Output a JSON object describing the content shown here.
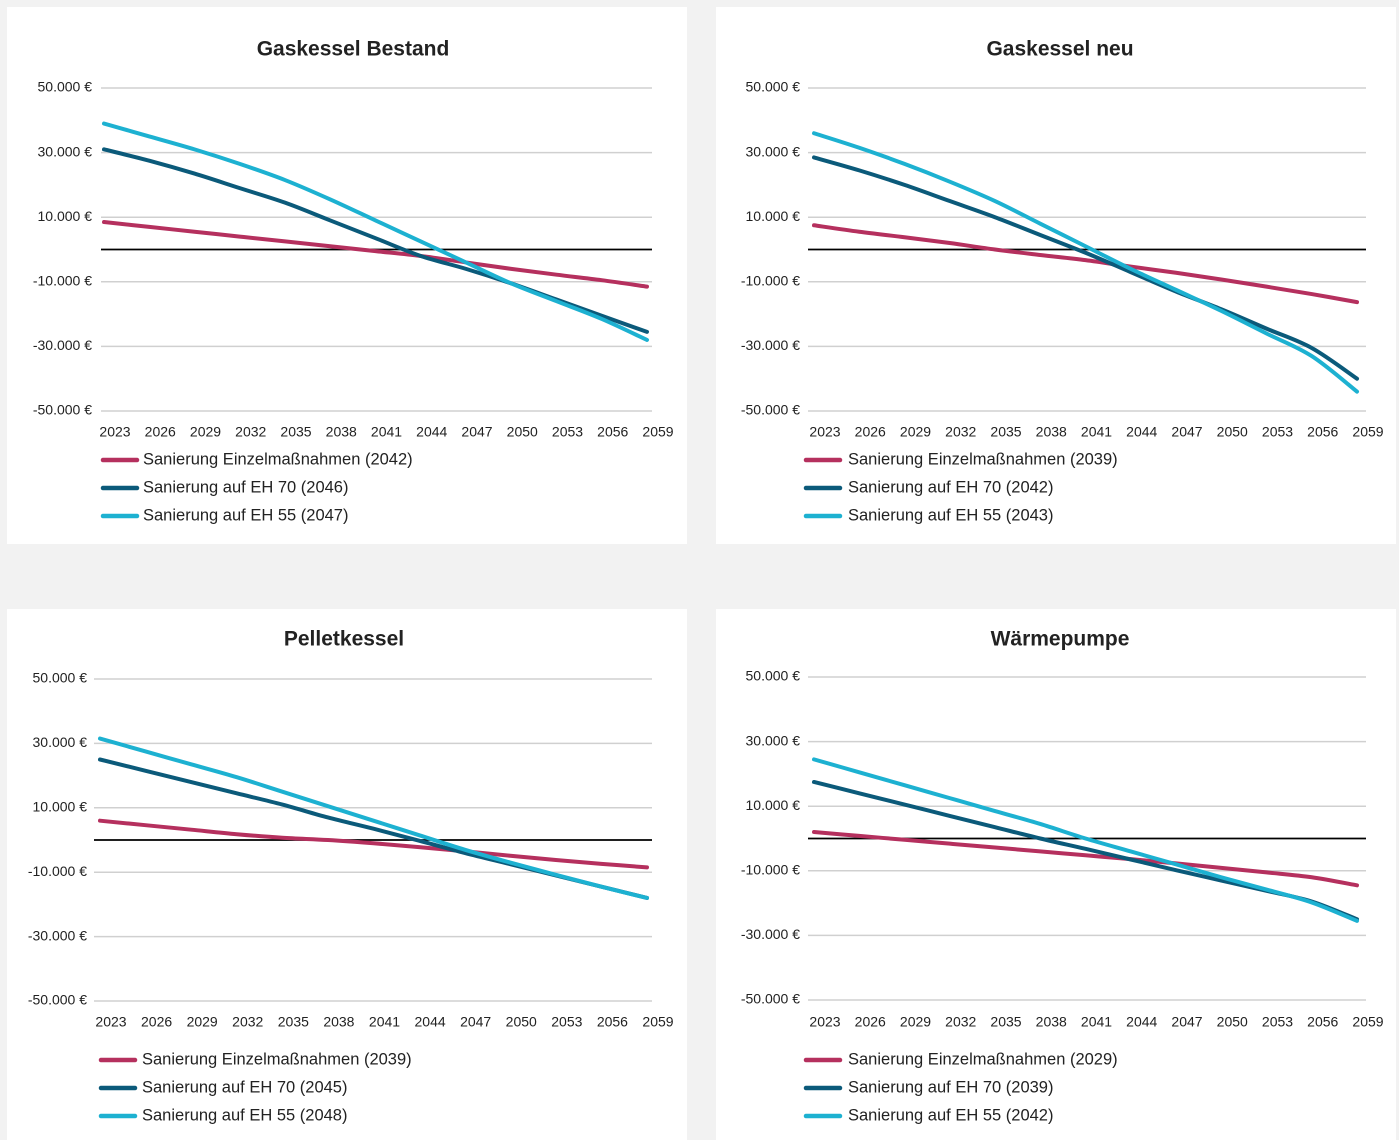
{
  "colors": {
    "einzel": "#b5305e",
    "eh70": "#0b5a7a",
    "eh55": "#1db1d1",
    "grid": "#d0d0d0",
    "zero_line": "#000000"
  },
  "chart_data": [
    {
      "type": "line",
      "title": "Gaskessel Bestand",
      "x_ticks": [
        "2023",
        "2026",
        "2029",
        "2032",
        "2035",
        "2038",
        "2041",
        "2044",
        "2047",
        "2050",
        "2053",
        "2056",
        "2059"
      ],
      "y_ticks": [
        "50.000 €",
        "30.000 €",
        "10.000 €",
        "-10.000 €",
        "-30.000 €",
        "-50.000 €"
      ],
      "ylim": [
        -50000,
        50000
      ],
      "grid": true,
      "legend_position": "bottom",
      "x": [
        2023,
        2026,
        2029,
        2032,
        2035,
        2038,
        2041,
        2044,
        2047,
        2050,
        2053,
        2056,
        2059
      ],
      "series": [
        {
          "name": "Sanierung Einzelmaßnahmen (2042)",
          "color_key": "einzel",
          "values": [
            8500,
            7000,
            5500,
            4000,
            2500,
            1000,
            -500,
            -2000,
            -4000,
            -6000,
            -7800,
            -9500,
            -11500
          ]
        },
        {
          "name": "Sanierung auf EH 70 (2046)",
          "color_key": "eh70",
          "values": [
            31000,
            27500,
            23500,
            19000,
            14500,
            9000,
            3500,
            -2000,
            -6000,
            -10500,
            -15500,
            -20500,
            -25500
          ]
        },
        {
          "name": "Sanierung auf EH 55 (2047)",
          "color_key": "eh55",
          "values": [
            39000,
            35000,
            31000,
            26500,
            21500,
            15500,
            9000,
            2500,
            -4000,
            -10500,
            -16000,
            -21500,
            -28000
          ]
        }
      ]
    },
    {
      "type": "line",
      "title": "Gaskessel neu",
      "x_ticks": [
        "2023",
        "2026",
        "2029",
        "2032",
        "2035",
        "2038",
        "2041",
        "2044",
        "2047",
        "2050",
        "2053",
        "2056",
        "2059"
      ],
      "y_ticks": [
        "50.000 €",
        "30.000 €",
        "10.000 €",
        "-10.000 €",
        "-30.000 €",
        "-50.000 €"
      ],
      "ylim": [
        -50000,
        50000
      ],
      "grid": true,
      "legend_position": "bottom",
      "x": [
        2023,
        2026,
        2029,
        2032,
        2035,
        2038,
        2041,
        2044,
        2047,
        2050,
        2053,
        2056,
        2059
      ],
      "series": [
        {
          "name": "Sanierung Einzelmaßnahmen (2039)",
          "color_key": "einzel",
          "values": [
            7500,
            5500,
            3800,
            2000,
            0,
            -1700,
            -3300,
            -5300,
            -7200,
            -9300,
            -11500,
            -13800,
            -16300
          ]
        },
        {
          "name": "Sanierung auf EH 70 (2042)",
          "color_key": "eh70",
          "values": [
            28500,
            24500,
            20000,
            15000,
            10000,
            4500,
            -1000,
            -7000,
            -13000,
            -18500,
            -24500,
            -30500,
            -40000
          ]
        },
        {
          "name": "Sanierung auf EH 55 (2043)",
          "color_key": "eh55",
          "values": [
            36000,
            31500,
            26500,
            21000,
            15000,
            8000,
            1000,
            -6000,
            -12500,
            -19000,
            -26000,
            -33000,
            -44000
          ]
        }
      ]
    },
    {
      "type": "line",
      "title": "Pelletkessel",
      "x_ticks": [
        "2023",
        "2026",
        "2029",
        "2032",
        "2035",
        "2038",
        "2041",
        "2044",
        "2047",
        "2050",
        "2053",
        "2056",
        "2059"
      ],
      "y_ticks": [
        "50.000 €",
        "30.000 €",
        "10.000 €",
        "-10.000 €",
        "-30.000 €",
        "-50.000 €"
      ],
      "ylim": [
        -50000,
        50000
      ],
      "grid": true,
      "legend_position": "bottom",
      "x": [
        2023,
        2026,
        2029,
        2032,
        2035,
        2038,
        2041,
        2044,
        2047,
        2050,
        2053,
        2056,
        2059
      ],
      "series": [
        {
          "name": "Sanierung Einzelmaßnahmen (2039)",
          "color_key": "einzel",
          "values": [
            6000,
            4600,
            3200,
            1800,
            700,
            0,
            -1000,
            -2200,
            -3500,
            -4900,
            -6200,
            -7400,
            -8500
          ]
        },
        {
          "name": "Sanierung auf EH 70 (2045)",
          "color_key": "eh70",
          "values": [
            25000,
            21500,
            18000,
            14500,
            11000,
            7000,
            3500,
            -200,
            -4000,
            -7500,
            -11000,
            -14500,
            -18000
          ]
        },
        {
          "name": "Sanierung auf EH 55 (2048)",
          "color_key": "eh55",
          "values": [
            31500,
            27500,
            23500,
            19500,
            15000,
            10500,
            6000,
            1500,
            -3000,
            -7000,
            -10800,
            -14500,
            -18000
          ]
        }
      ]
    },
    {
      "type": "line",
      "title": "Wärmepumpe",
      "x_ticks": [
        "2023",
        "2026",
        "2029",
        "2032",
        "2035",
        "2038",
        "2041",
        "2044",
        "2047",
        "2050",
        "2053",
        "2056",
        "2059"
      ],
      "y_ticks": [
        "50.000 €",
        "30.000 €",
        "10.000 €",
        "-10.000 €",
        "-30.000 €",
        "-50.000 €"
      ],
      "ylim": [
        -50000,
        50000
      ],
      "grid": true,
      "legend_position": "bottom",
      "x": [
        2023,
        2026,
        2029,
        2032,
        2035,
        2038,
        2041,
        2044,
        2047,
        2050,
        2053,
        2056,
        2059
      ],
      "series": [
        {
          "name": "Sanierung Einzelmaßnahmen (2029)",
          "color_key": "einzel",
          "values": [
            2000,
            800,
            -400,
            -1600,
            -2800,
            -4000,
            -5200,
            -6400,
            -7700,
            -9100,
            -10500,
            -12000,
            -14500
          ]
        },
        {
          "name": "Sanierung auf EH 70 (2039)",
          "color_key": "eh70",
          "values": [
            17500,
            14000,
            10500,
            7000,
            3500,
            0,
            -3200,
            -6500,
            -9800,
            -13000,
            -16200,
            -19500,
            -25000
          ]
        },
        {
          "name": "Sanierung auf EH 55 (2042)",
          "color_key": "eh55",
          "values": [
            24500,
            20500,
            16500,
            12500,
            8500,
            4500,
            0,
            -4000,
            -8000,
            -12000,
            -15800,
            -19800,
            -25500
          ]
        }
      ]
    }
  ]
}
